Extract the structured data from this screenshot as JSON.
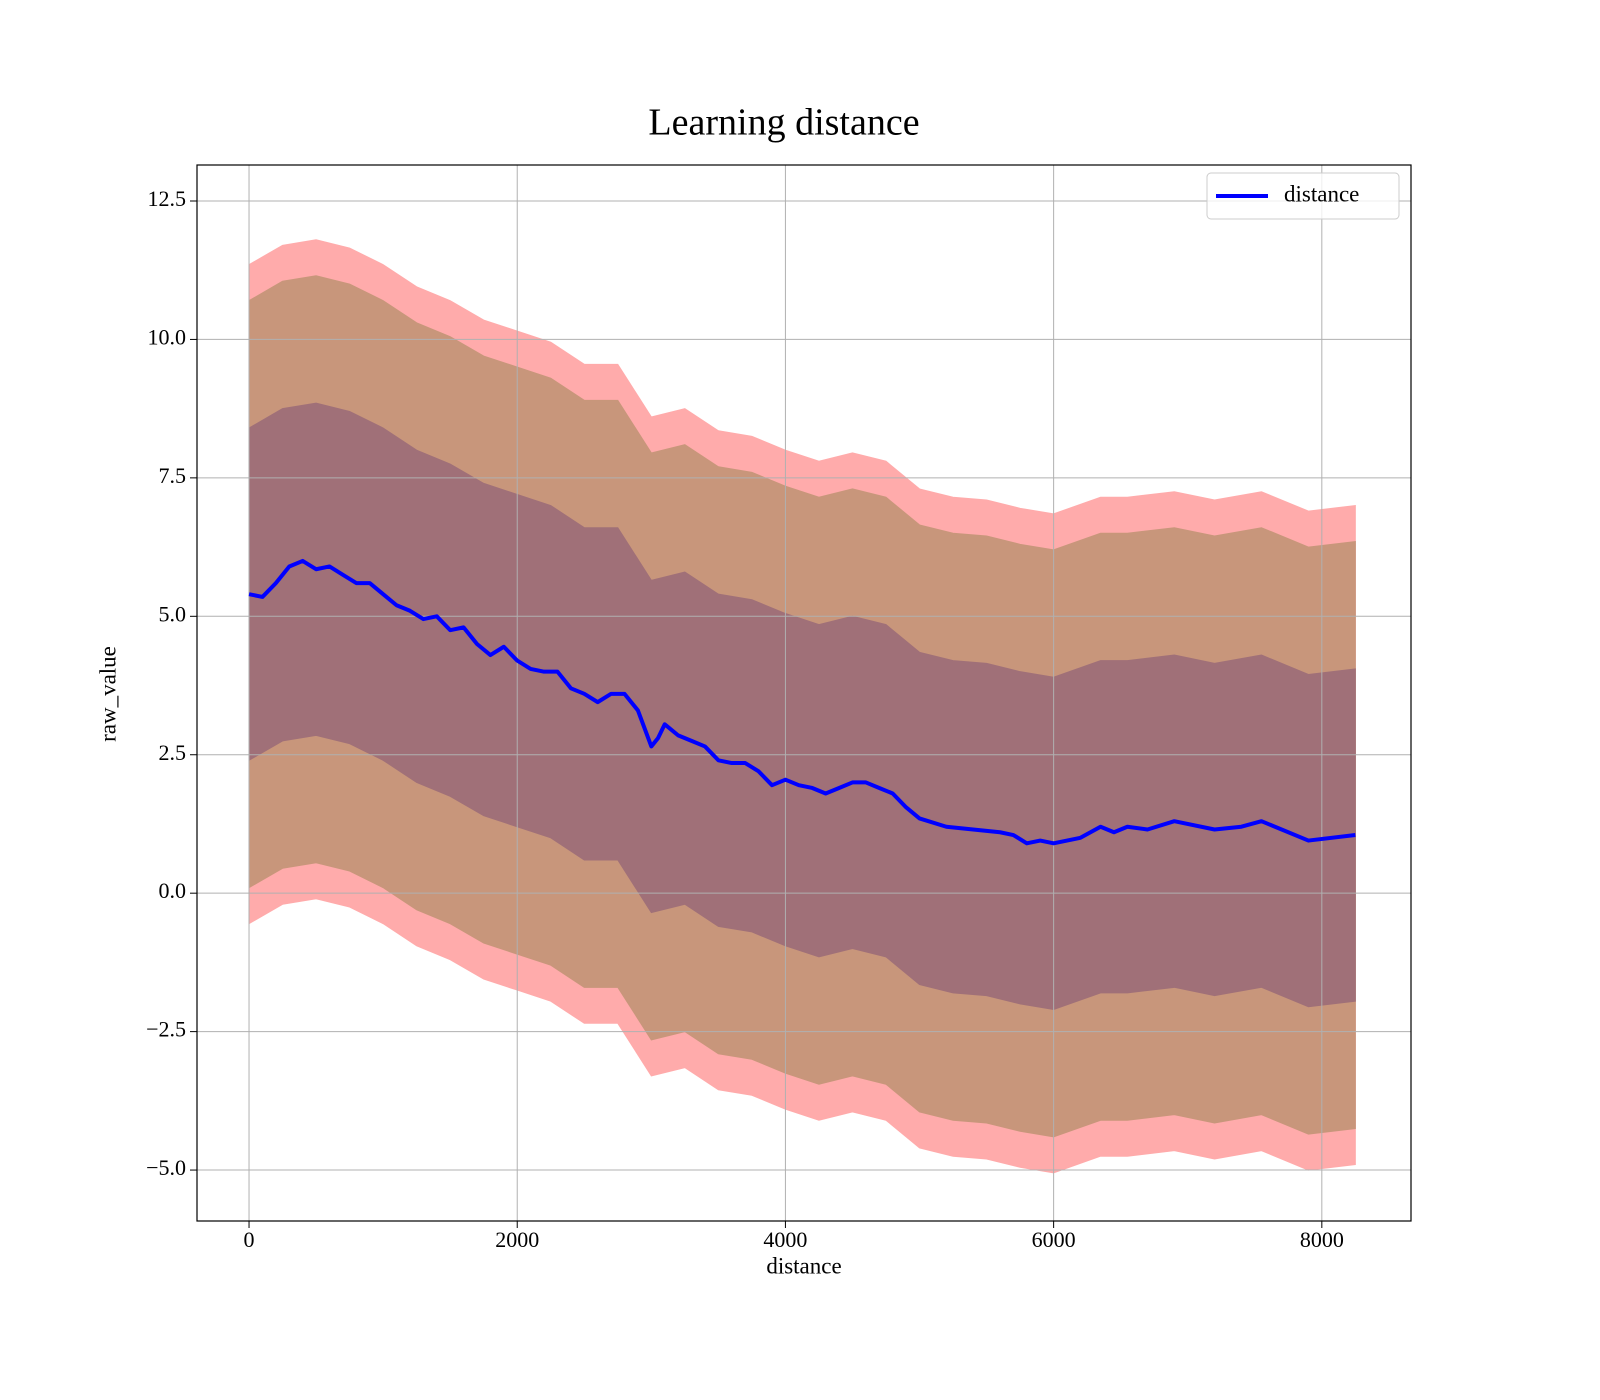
{
  "chart_data": {
    "type": "line",
    "title": "Learning distance",
    "x_label": "distance",
    "y_label": "raw_value",
    "x": [
      0,
      100,
      200,
      300,
      400,
      500,
      600,
      700,
      800,
      900,
      1000,
      1100,
      1200,
      1300,
      1400,
      1500,
      1600,
      1700,
      1800,
      1900,
      2000,
      2100,
      2200,
      2300,
      2400,
      2500,
      2600,
      2700,
      2800,
      2900,
      3000,
      3050,
      3100,
      3200,
      3300,
      3400,
      3500,
      3600,
      3700,
      3800,
      3900,
      4000,
      4100,
      4200,
      4300,
      4400,
      4500,
      4600,
      4700,
      4800,
      4900,
      5000,
      5200,
      5400,
      5600,
      5700,
      5800,
      5900,
      6000,
      6200,
      6350,
      6450,
      6550,
      6700,
      6900,
      7200,
      7400,
      7550,
      7900,
      8250
    ],
    "series": [
      {
        "name": "distance",
        "color": "#0000ff",
        "values": [
          5.4,
          5.35,
          5.6,
          5.9,
          6.0,
          5.85,
          5.9,
          5.75,
          5.6,
          5.6,
          5.4,
          5.2,
          5.1,
          4.95,
          5.0,
          4.75,
          4.8,
          4.5,
          4.3,
          4.45,
          4.2,
          4.05,
          4.0,
          4.0,
          3.7,
          3.6,
          3.45,
          3.6,
          3.6,
          3.3,
          2.65,
          2.8,
          3.05,
          2.85,
          2.75,
          2.65,
          2.4,
          2.35,
          2.35,
          2.2,
          1.95,
          2.05,
          1.95,
          1.9,
          1.8,
          1.9,
          2.0,
          2.0,
          1.9,
          1.8,
          1.55,
          1.35,
          1.2,
          1.15,
          1.1,
          1.05,
          0.9,
          0.95,
          0.9,
          1.0,
          1.2,
          1.1,
          1.2,
          1.15,
          1.3,
          1.15,
          1.2,
          1.3,
          0.95,
          1.05
        ]
      }
    ],
    "band_x": [
      0,
      250,
      500,
      750,
      1000,
      1250,
      1500,
      1750,
      2000,
      2250,
      2500,
      2750,
      3000,
      3250,
      3500,
      3750,
      4000,
      4250,
      4500,
      4750,
      5000,
      5250,
      5500,
      5750,
      6000,
      6350,
      6550,
      6900,
      7200,
      7550,
      7900,
      8250
    ],
    "bands": [
      {
        "color": "#ffabab",
        "upper": [
          11.35,
          11.7,
          11.8,
          11.65,
          11.35,
          10.95,
          10.7,
          10.35,
          10.15,
          9.95,
          9.55,
          9.55,
          8.6,
          8.75,
          8.35,
          8.25,
          8.0,
          7.8,
          7.95,
          7.8,
          7.3,
          7.15,
          7.1,
          6.95,
          6.85,
          7.15,
          7.15,
          7.25,
          7.1,
          7.25,
          6.9,
          7.0
        ],
        "lower": [
          -0.55,
          -0.2,
          -0.1,
          -0.25,
          -0.55,
          -0.95,
          -1.2,
          -1.55,
          -1.75,
          -1.95,
          -2.35,
          -2.35,
          -3.3,
          -3.15,
          -3.55,
          -3.65,
          -3.9,
          -4.1,
          -3.95,
          -4.1,
          -4.6,
          -4.75,
          -4.8,
          -4.95,
          -5.05,
          -4.75,
          -4.75,
          -4.65,
          -4.8,
          -4.65,
          -5.0,
          -4.9
        ]
      },
      {
        "color": "#c8967b",
        "upper": [
          10.7,
          11.05,
          11.15,
          11.0,
          10.7,
          10.3,
          10.05,
          9.7,
          9.5,
          9.3,
          8.9,
          8.9,
          7.95,
          8.1,
          7.7,
          7.6,
          7.35,
          7.15,
          7.3,
          7.15,
          6.65,
          6.5,
          6.45,
          6.3,
          6.2,
          6.5,
          6.5,
          6.6,
          6.45,
          6.6,
          6.25,
          6.35
        ],
        "lower": [
          0.1,
          0.45,
          0.55,
          0.4,
          0.1,
          -0.3,
          -0.55,
          -0.9,
          -1.1,
          -1.3,
          -1.7,
          -1.7,
          -2.65,
          -2.5,
          -2.9,
          -3.0,
          -3.25,
          -3.45,
          -3.3,
          -3.45,
          -3.95,
          -4.1,
          -4.15,
          -4.3,
          -4.4,
          -4.1,
          -4.1,
          -4.0,
          -4.15,
          -4.0,
          -4.35,
          -4.25
        ]
      },
      {
        "color": "#a07078",
        "upper": [
          8.4,
          8.75,
          8.85,
          8.7,
          8.4,
          8.0,
          7.75,
          7.4,
          7.2,
          7.0,
          6.6,
          6.6,
          5.65,
          5.8,
          5.4,
          5.3,
          5.05,
          4.85,
          5.0,
          4.85,
          4.35,
          4.2,
          4.15,
          4.0,
          3.9,
          4.2,
          4.2,
          4.3,
          4.15,
          4.3,
          3.95,
          4.05
        ],
        "lower": [
          2.4,
          2.75,
          2.85,
          2.7,
          2.4,
          2.0,
          1.75,
          1.4,
          1.2,
          1.0,
          0.6,
          0.6,
          -0.35,
          -0.2,
          -0.6,
          -0.7,
          -0.95,
          -1.15,
          -1.0,
          -1.15,
          -1.65,
          -1.8,
          -1.85,
          -2.0,
          -2.1,
          -1.8,
          -1.8,
          -1.7,
          -1.85,
          -1.7,
          -2.05,
          -1.95
        ]
      }
    ],
    "xlim": [
      -388,
      8665
    ],
    "ylim": [
      -5.92,
      13.15
    ],
    "xticks": [
      0,
      2000,
      4000,
      6000,
      8000
    ],
    "yticks": [
      {
        "value": -5,
        "label": "−5.0"
      },
      {
        "value": -2.5,
        "label": "−2.5"
      },
      {
        "value": 0,
        "label": "0.0"
      },
      2.5,
      {
        "value": 5,
        "label": "5.0"
      },
      7.5,
      {
        "value": 10,
        "label": "10.0"
      },
      12.5
    ],
    "grid": true,
    "legend": "upper right"
  }
}
